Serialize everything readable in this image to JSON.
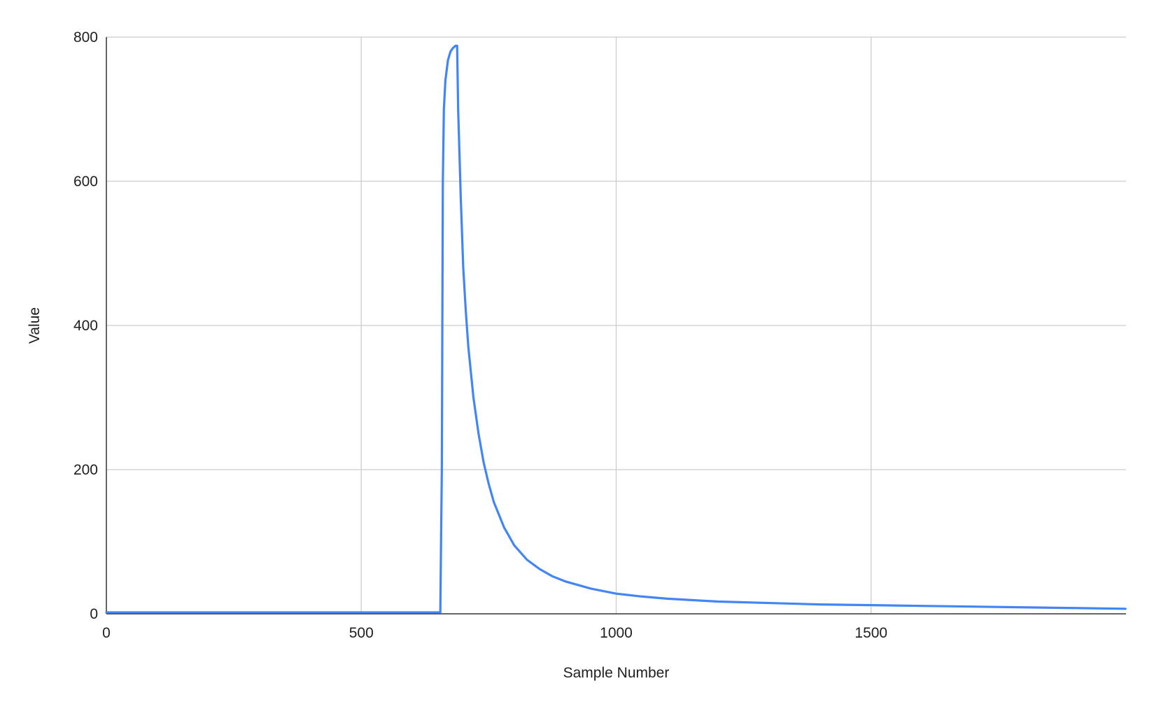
{
  "chart_data": {
    "type": "line",
    "title": "",
    "xlabel": "Sample Number",
    "ylabel": "Value",
    "xlim": [
      0,
      2000
    ],
    "ylim": [
      0,
      800
    ],
    "x_ticks": [
      0,
      500,
      1000,
      1500
    ],
    "x_tick_labels": [
      "0",
      "500",
      "1000",
      "1500"
    ],
    "y_ticks": [
      0,
      200,
      400,
      600,
      800
    ],
    "y_tick_labels": [
      "0",
      "200",
      "400",
      "600",
      "800"
    ],
    "grid": true,
    "legend": "none",
    "series": [
      {
        "color": "#4285f4",
        "x": [
          0,
          100,
          200,
          300,
          400,
          500,
          600,
          650,
          655,
          658,
          660,
          662,
          665,
          670,
          675,
          680,
          685,
          688,
          690,
          695,
          700,
          705,
          710,
          720,
          730,
          740,
          750,
          760,
          780,
          800,
          825,
          850,
          875,
          900,
          950,
          1000,
          1050,
          1100,
          1200,
          1300,
          1400,
          1500,
          1600,
          1700,
          1800,
          1900,
          1999
        ],
        "y": [
          2,
          2,
          2,
          2,
          2,
          2,
          2,
          2,
          2,
          200,
          600,
          700,
          740,
          768,
          780,
          785,
          788,
          788,
          700,
          580,
          480,
          420,
          370,
          300,
          250,
          210,
          180,
          155,
          120,
          95,
          75,
          62,
          52,
          45,
          35,
          28,
          24,
          21,
          17,
          15,
          13,
          12,
          11,
          10,
          9,
          8,
          7
        ]
      }
    ]
  }
}
